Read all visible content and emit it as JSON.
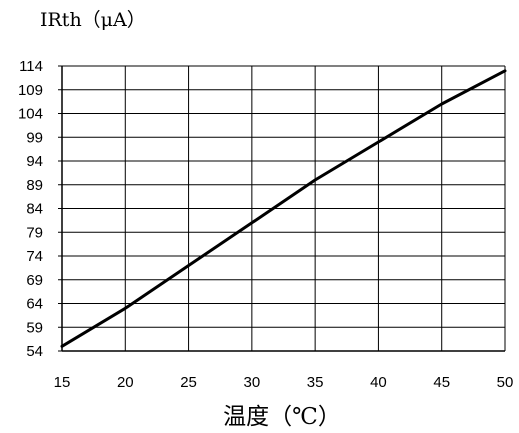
{
  "chart_data": {
    "type": "line",
    "title": "",
    "ylabel": "IRth（μA）",
    "xlabel": "温度（℃）",
    "xlim": [
      15,
      50
    ],
    "ylim": [
      54,
      114
    ],
    "x_ticks": [
      15,
      20,
      25,
      30,
      35,
      40,
      45,
      50
    ],
    "y_ticks": [
      54,
      59,
      64,
      69,
      74,
      79,
      84,
      89,
      94,
      99,
      104,
      109,
      114
    ],
    "grid": true,
    "series": [
      {
        "x": [
          15,
          20,
          25,
          30,
          35,
          40,
          45,
          50
        ],
        "y": [
          55,
          63,
          72,
          81,
          90,
          98,
          106,
          113
        ]
      }
    ]
  }
}
